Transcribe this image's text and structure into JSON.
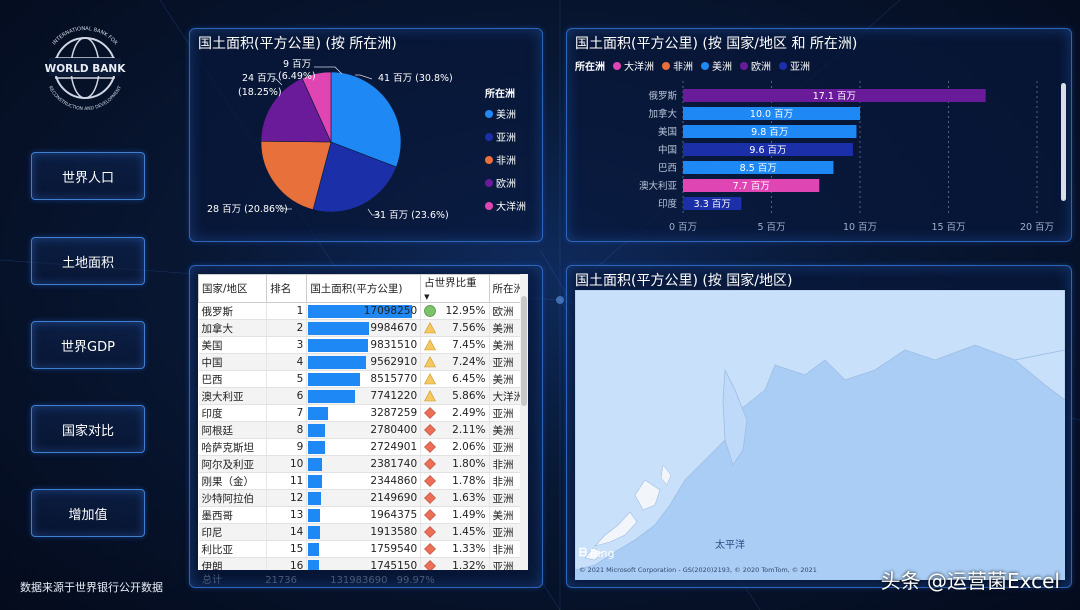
{
  "brand": {
    "logo_text_top": "INTERNATIONAL BANK FOR",
    "logo_text_main": "WORLD BANK",
    "logo_text_bottom": "RECONSTRUCTION AND DEVELOPMENT"
  },
  "nav": [
    {
      "label": "世界人口"
    },
    {
      "label": "土地面积"
    },
    {
      "label": "世界GDP"
    },
    {
      "label": "国家对比"
    },
    {
      "label": "增加值"
    }
  ],
  "source_note": "数据来源于世界银行公开数据",
  "pie_panel": {
    "title": "国土面积(平方公里) (按 所在洲)",
    "legend_title": "所在洲",
    "legend": [
      "美洲",
      "亚洲",
      "非洲",
      "欧洲",
      "大洋洲"
    ],
    "colors": {
      "美洲": "#1e88f5",
      "亚洲": "#1a2fa8",
      "非洲": "#e8703a",
      "欧洲": "#6a1b9a",
      "大洋洲": "#e046b3"
    },
    "labels": [
      {
        "value": "41 百万 (30.8%)"
      },
      {
        "value": "31 百万 (23.6%)"
      },
      {
        "value": "28 百万 (20.86%)"
      },
      {
        "line1": "24 百万",
        "line2": "(18.25%)"
      },
      {
        "line1": "9 百万",
        "line2": "(6.49%)"
      }
    ]
  },
  "bar_panel": {
    "title": "国土面积(平方公里) (按 国家/地区 和 所在洲)",
    "legend_title": "所在洲",
    "legend": [
      "大洋洲",
      "非洲",
      "美洲",
      "欧洲",
      "亚洲"
    ],
    "ticks": [
      "0 百万",
      "5 百万",
      "10 百万",
      "15 百万",
      "20 百万"
    ]
  },
  "chart_data": [
    {
      "type": "pie",
      "title": "国土面积(平方公里) (按 所在洲)",
      "categories": [
        "美洲",
        "亚洲",
        "非洲",
        "欧洲",
        "大洋洲"
      ],
      "values": [
        41,
        31,
        28,
        24,
        9
      ],
      "percent": [
        30.8,
        23.6,
        20.86,
        18.25,
        6.49
      ],
      "legend_position": "right"
    },
    {
      "type": "bar",
      "title": "国土面积(平方公里) (按 国家/地区 和 所在洲)",
      "orientation": "horizontal",
      "categories": [
        "俄罗斯",
        "加拿大",
        "美国",
        "中国",
        "巴西",
        "澳大利亚",
        "印度"
      ],
      "values": [
        17.1,
        10.0,
        9.8,
        9.6,
        8.5,
        7.7,
        3.3
      ],
      "value_labels": [
        "17.1 百万",
        "10.0 百万",
        "9.8 百万",
        "9.6 百万",
        "8.5 百万",
        "7.7 百万",
        "3.3 百万"
      ],
      "continent": [
        "欧洲",
        "美洲",
        "美洲",
        "亚洲",
        "美洲",
        "大洋洲",
        "亚洲"
      ],
      "xlim": [
        0,
        20
      ],
      "grid": true,
      "legend_position": "top-left"
    }
  ],
  "table": {
    "headers": [
      "国家/地区",
      "排名",
      "国土面积(平方公里)",
      "占世界比重",
      "所在洲"
    ],
    "max": 17098250,
    "rows": [
      {
        "name": "俄罗斯",
        "rank": "1",
        "area": "17098250",
        "share": "12.95%",
        "icon": "circle",
        "cont": "欧洲"
      },
      {
        "name": "加拿大",
        "rank": "2",
        "area": "9984670",
        "share": "7.56%",
        "icon": "triangle",
        "cont": "美洲"
      },
      {
        "name": "美国",
        "rank": "3",
        "area": "9831510",
        "share": "7.45%",
        "icon": "triangle",
        "cont": "美洲"
      },
      {
        "name": "中国",
        "rank": "4",
        "area": "9562910",
        "share": "7.24%",
        "icon": "triangle",
        "cont": "亚洲"
      },
      {
        "name": "巴西",
        "rank": "5",
        "area": "8515770",
        "share": "6.45%",
        "icon": "triangle",
        "cont": "美洲"
      },
      {
        "name": "澳大利亚",
        "rank": "6",
        "area": "7741220",
        "share": "5.86%",
        "icon": "triangle",
        "cont": "大洋洲"
      },
      {
        "name": "印度",
        "rank": "7",
        "area": "3287259",
        "share": "2.49%",
        "icon": "diamond",
        "cont": "亚洲"
      },
      {
        "name": "阿根廷",
        "rank": "8",
        "area": "2780400",
        "share": "2.11%",
        "icon": "diamond",
        "cont": "美洲"
      },
      {
        "name": "哈萨克斯坦",
        "rank": "9",
        "area": "2724901",
        "share": "2.06%",
        "icon": "diamond",
        "cont": "亚洲"
      },
      {
        "name": "阿尔及利亚",
        "rank": "10",
        "area": "2381740",
        "share": "1.80%",
        "icon": "diamond",
        "cont": "非洲"
      },
      {
        "name": "刚果（金）",
        "rank": "11",
        "area": "2344860",
        "share": "1.78%",
        "icon": "diamond",
        "cont": "非洲"
      },
      {
        "name": "沙特阿拉伯",
        "rank": "12",
        "area": "2149690",
        "share": "1.63%",
        "icon": "diamond",
        "cont": "亚洲"
      },
      {
        "name": "墨西哥",
        "rank": "13",
        "area": "1964375",
        "share": "1.49%",
        "icon": "diamond",
        "cont": "美洲"
      },
      {
        "name": "印尼",
        "rank": "14",
        "area": "1913580",
        "share": "1.45%",
        "icon": "diamond",
        "cont": "亚洲"
      },
      {
        "name": "利比亚",
        "rank": "15",
        "area": "1759540",
        "share": "1.33%",
        "icon": "diamond",
        "cont": "非洲"
      },
      {
        "name": "伊朗",
        "rank": "16",
        "area": "1745150",
        "share": "1.32%",
        "icon": "diamond",
        "cont": "亚洲"
      }
    ],
    "totals": {
      "label": "总计",
      "rank": "21736",
      "area": "131983690",
      "share": "99.97%"
    }
  },
  "map_panel": {
    "title": "国土面积(平方公里) (按 国家/地区)",
    "ocean_label": "太平洋",
    "bing_label": "Bing",
    "attribution": "© 2021 Microsoft Corporation - GS(2020)2193, © 2020 TomTom, © 2021"
  },
  "watermark": "头条 @运营菌Excel"
}
